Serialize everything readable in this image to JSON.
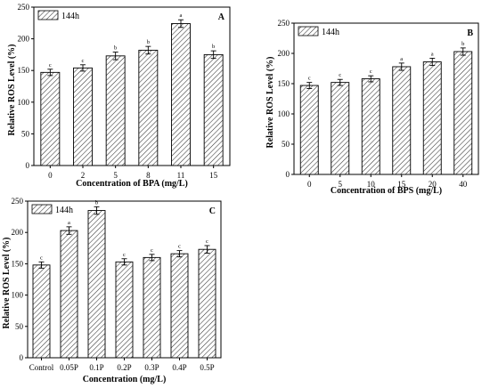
{
  "chart_data": [
    {
      "type": "bar",
      "panel_label": "A",
      "legend": [
        "144h"
      ],
      "xlabel": "Concentration of BPA (mg/L)",
      "ylabel": "Relative ROS Level (%)",
      "ylim": [
        0,
        250
      ],
      "yticks": [
        0,
        50,
        100,
        150,
        200,
        250
      ],
      "categories": [
        "0",
        "2",
        "5",
        "8",
        "11",
        "15"
      ],
      "values": [
        147,
        154,
        173,
        182,
        224,
        175
      ],
      "errors": [
        5,
        5,
        6,
        6,
        6,
        6
      ],
      "significance": [
        "c",
        "c",
        "b",
        "b",
        "a",
        "b"
      ]
    },
    {
      "type": "bar",
      "panel_label": "B",
      "legend": [
        "144h"
      ],
      "xlabel": "Concentration of BPS (mg/L)",
      "ylabel": "Relative ROS Level (%)",
      "ylim": [
        0,
        250
      ],
      "yticks": [
        0,
        50,
        100,
        150,
        200,
        250
      ],
      "categories": [
        "0",
        "5",
        "10",
        "15",
        "20",
        "40"
      ],
      "values": [
        147,
        152,
        158,
        178,
        186,
        203
      ],
      "errors": [
        5,
        5,
        5,
        6,
        6,
        6
      ],
      "significance": [
        "c",
        "c",
        "c",
        "a",
        "a",
        "b"
      ]
    },
    {
      "type": "bar",
      "panel_label": "C",
      "legend": [
        "144h"
      ],
      "xlabel": "Concentration (mg/L)",
      "ylabel": "Relative ROS Level (%)",
      "ylim": [
        0,
        250
      ],
      "yticks": [
        0,
        50,
        100,
        150,
        200,
        250
      ],
      "categories": [
        "Control",
        "0.05P",
        "0.1P",
        "0.2P",
        "0.3P",
        "0.4P",
        "0.5P"
      ],
      "values": [
        148,
        203,
        235,
        153,
        160,
        166,
        173
      ],
      "errors": [
        5,
        6,
        6,
        5,
        5,
        5,
        6
      ],
      "significance": [
        "c",
        "a",
        "b",
        "c",
        "c",
        "c",
        "c"
      ]
    }
  ]
}
